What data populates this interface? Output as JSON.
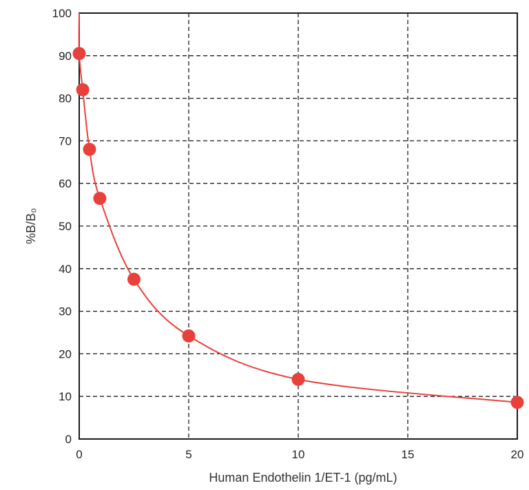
{
  "chart_data": {
    "type": "scatter",
    "xlabel": "Human Endothelin 1/ET-1 (pg/mL)",
    "ylabel": "%B/B₀",
    "xlim": [
      0,
      20
    ],
    "ylim": [
      0,
      100
    ],
    "xticks": [
      "0",
      "5",
      "10",
      "15",
      "20"
    ],
    "yticks": [
      "0",
      "10",
      "20",
      "30",
      "40",
      "50",
      "60",
      "70",
      "80",
      "90",
      "100"
    ],
    "grid": true,
    "series": [
      {
        "points": [
          {
            "x": 0.0,
            "y": 90.5
          },
          {
            "x": 0.16,
            "y": 82
          },
          {
            "x": 0.47,
            "y": 68
          },
          {
            "x": 0.94,
            "y": 56.5
          },
          {
            "x": 2.5,
            "y": 37.5
          },
          {
            "x": 5.0,
            "y": 24.2
          },
          {
            "x": 10.0,
            "y": 14
          },
          {
            "x": 20.0,
            "y": 8.6
          }
        ],
        "color": "#e8403a",
        "marker": "circle",
        "fit_curve": true
      }
    ]
  }
}
